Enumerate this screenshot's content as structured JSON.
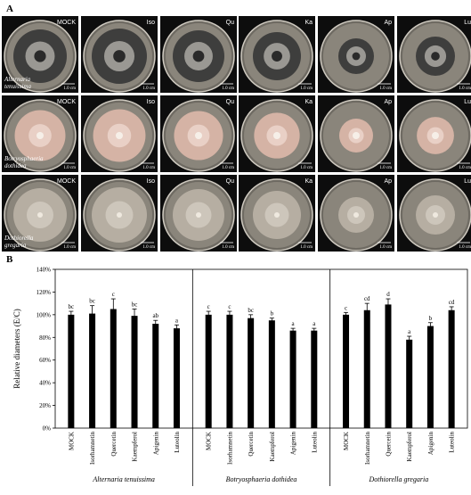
{
  "panel_a": {
    "letter": "A",
    "rows": [
      {
        "organism_line1": "Alternaria",
        "organism_line2": "tenuissima",
        "colony": "dark",
        "plates": [
          "MOCK",
          "Iso",
          "Qu",
          "Ka",
          "Ap",
          "Lu"
        ]
      },
      {
        "organism_line1": "Botryosphaeria",
        "organism_line2": "dothidea",
        "colony": "pink",
        "plates": [
          "MOCK",
          "Iso",
          "Qu",
          "Ka",
          "Ap",
          "Lu"
        ]
      },
      {
        "organism_line1": "Dothiorella",
        "organism_line2": "gregaria",
        "colony": "gray",
        "plates": [
          "MOCK",
          "Iso",
          "Qu",
          "Ka",
          "Ap",
          "Lu"
        ]
      }
    ],
    "scale_bar": "1.0 cm",
    "colors": {
      "dark_colony": "#3a3a3a",
      "pink_colony": "#d9b5a8",
      "gray_colony": "#b8b0a4",
      "background": "#0d0d0d"
    }
  },
  "panel_b": {
    "letter": "B"
  },
  "chart_data": {
    "type": "bar",
    "title": "",
    "ylabel": "Relative diameters (E/C)",
    "ylim": [
      0,
      140
    ],
    "yticks": [
      "0%",
      "20%",
      "40%",
      "60%",
      "80%",
      "100%",
      "120%",
      "140%"
    ],
    "bar_color": "#000000",
    "groups": [
      {
        "name": "Alternaria tenuissima",
        "categories": [
          "MOCK",
          "Isorhamnetin",
          "Quercetin",
          "Kaempferol",
          "Apigenin",
          "Luteolin"
        ],
        "values": [
          100,
          101,
          105,
          99,
          92,
          88
        ],
        "errors": [
          3,
          7,
          9,
          6,
          3,
          3
        ],
        "letters": [
          "bc",
          "bc",
          "c",
          "bc",
          "ab",
          "a"
        ]
      },
      {
        "name": "Botryosphaeria dothidea",
        "categories": [
          "MOCK",
          "Isorhamnetin",
          "Quercetin",
          "Kaempferol",
          "Apigenin",
          "Luteolin"
        ],
        "values": [
          100,
          100,
          97,
          95,
          86,
          86
        ],
        "errors": [
          3,
          3,
          3,
          2,
          2,
          2
        ],
        "letters": [
          "c",
          "c",
          "bc",
          "b",
          "a",
          "a"
        ]
      },
      {
        "name": "Dothiorella gregaria",
        "categories": [
          "MOCK",
          "Isorhamnetin",
          "Quercetin",
          "Kaempferol",
          "Apigenin",
          "Luteolin"
        ],
        "values": [
          100,
          104,
          109,
          78,
          90,
          104
        ],
        "errors": [
          2,
          6,
          5,
          3,
          3,
          3
        ],
        "letters": [
          "c",
          "cd",
          "d",
          "a",
          "b",
          "cd"
        ]
      }
    ]
  }
}
